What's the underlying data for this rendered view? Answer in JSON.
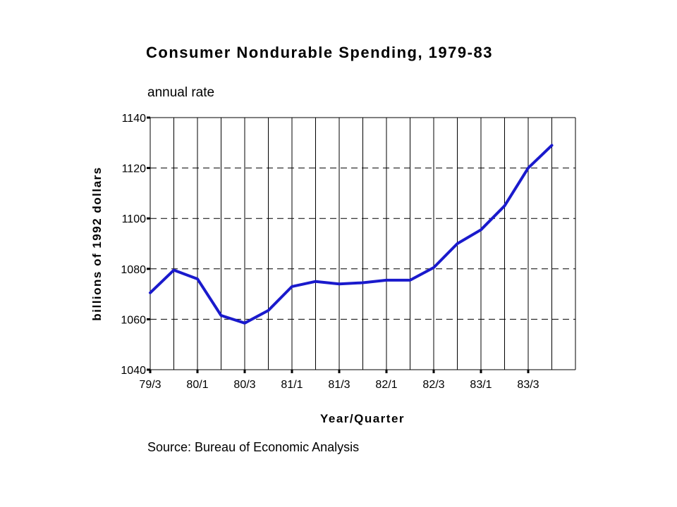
{
  "chart_data": {
    "type": "line",
    "title": "Consumer Nondurable Spending, 1979-83",
    "subtitle": "annual rate",
    "xlabel": "Year/Quarter",
    "ylabel": "billions of 1992 dollars",
    "source": "Source: Bureau of Economic Analysis",
    "ylim": [
      1040,
      1140
    ],
    "yticks": [
      1040,
      1060,
      1080,
      1100,
      1120,
      1140
    ],
    "xtick_labels": [
      "79/3",
      "80/1",
      "80/3",
      "81/1",
      "81/3",
      "82/1",
      "82/3",
      "83/1",
      "83/3"
    ],
    "x": [
      "79/3",
      "79/4",
      "80/1",
      "80/2",
      "80/3",
      "80/4",
      "81/1",
      "81/2",
      "81/3",
      "81/4",
      "82/1",
      "82/2",
      "82/3",
      "82/4",
      "83/1",
      "83/2",
      "83/3",
      "83/4"
    ],
    "series": [
      {
        "values": [
          1070.5,
          1079.5,
          1076,
          1061.5,
          1058.5,
          1063.5,
          1073,
          1075,
          1074,
          1074.5,
          1075.5,
          1075.5,
          1080.5,
          1090,
          1095.5,
          1105,
          1120,
          1129
        ],
        "color": "#1a1acc"
      }
    ],
    "grid": {
      "vertical": "solid",
      "horizontal": "dashed"
    }
  }
}
